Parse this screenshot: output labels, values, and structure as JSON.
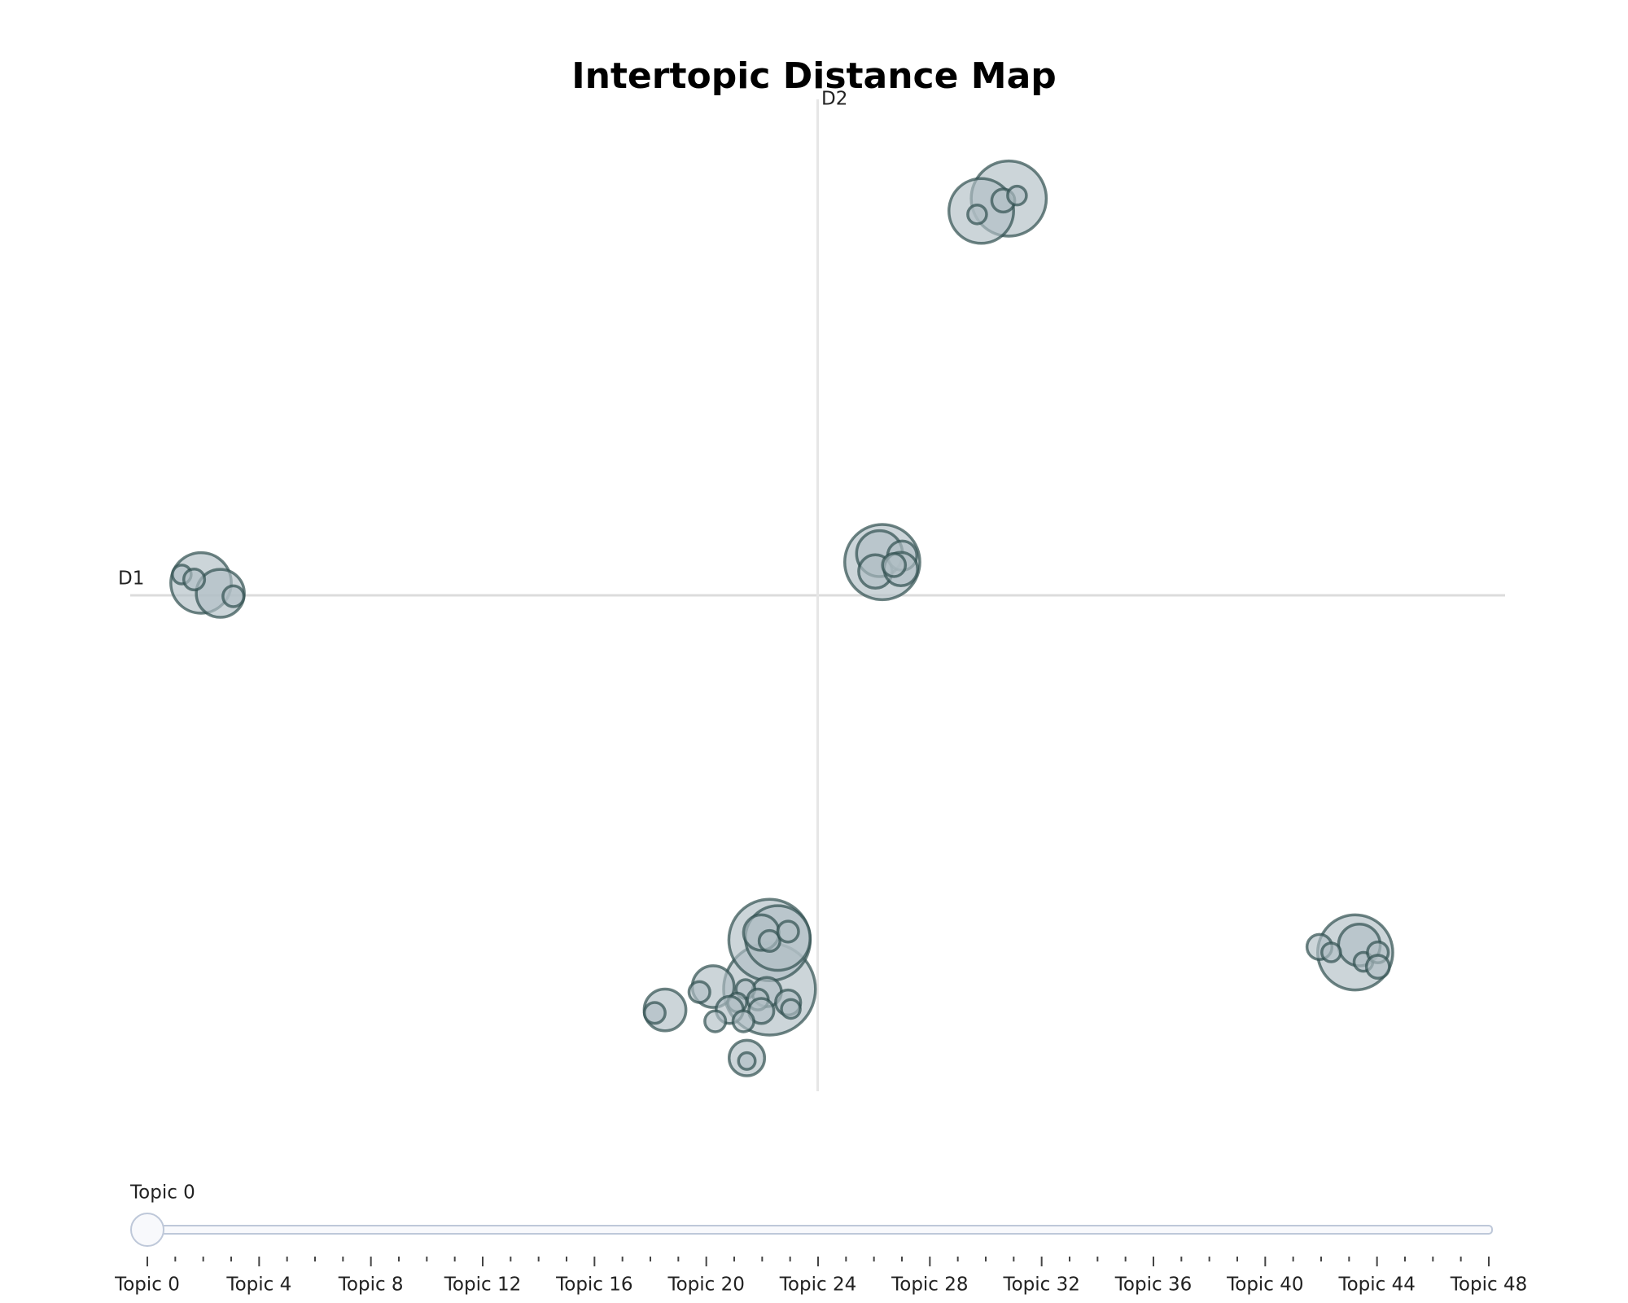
{
  "chart_data": {
    "type": "scatter",
    "title": "Intertopic Distance Map",
    "xlabel": "D1",
    "ylabel": "D2",
    "xlim": [
      -10,
      10
    ],
    "ylim": [
      -10,
      10
    ],
    "color": "#b0bec5",
    "edgecolor": "#2f4f4f",
    "x": [
      2.78,
      2.38,
      2.32,
      2.7,
      2.9,
      -8.97,
      -8.69,
      -9.25,
      -9.07,
      -8.5,
      0.94,
      0.9,
      0.84,
      1.23,
      1.21,
      1.11,
      -0.7,
      -0.7,
      -0.58,
      -0.82,
      -0.7,
      -0.43,
      -1.52,
      -1.72,
      -2.22,
      -2.37,
      -1.03,
      -1.03,
      -0.74,
      -1.05,
      -0.87,
      -1.17,
      -0.82,
      -1.28,
      -0.43,
      -0.39,
      -1.49,
      -1.08,
      7.82,
      7.88,
      7.3,
      7.47,
      7.94,
      8.15,
      8.15
    ],
    "y": [
      8.0,
      7.75,
      7.68,
      7.96,
      8.06,
      0.25,
      0.04,
      0.42,
      0.32,
      -0.02,
      0.67,
      0.84,
      0.48,
      0.8,
      0.53,
      0.61,
      -7.94,
      -6.95,
      -6.91,
      -6.8,
      -6.97,
      -6.78,
      -7.89,
      -8.0,
      -8.36,
      -8.42,
      -9.33,
      -9.39,
      -8.0,
      -7.94,
      -8.15,
      -8.21,
      -8.38,
      -8.36,
      -8.21,
      -8.34,
      -8.59,
      -8.59,
      -7.2,
      -7.05,
      -7.09,
      -7.2,
      -7.39,
      -7.2,
      -7.49
    ],
    "sizes": [
      36,
      31,
      9,
      11,
      9,
      29,
      23,
      9,
      10,
      10,
      36,
      22,
      16,
      14,
      16,
      11,
      44,
      39,
      31,
      17,
      10,
      10,
      20,
      10,
      20,
      10,
      17,
      8,
      14,
      9,
      10,
      9,
      12,
      13,
      12,
      9,
      10,
      10,
      36,
      20,
      12,
      9,
      9,
      10,
      11
    ]
  },
  "slider": {
    "current_label": "Topic 0",
    "tick_labels": [
      "Topic 0",
      "Topic 4",
      "Topic 8",
      "Topic 12",
      "Topic 16",
      "Topic 20",
      "Topic 24",
      "Topic 28",
      "Topic 32",
      "Topic 36",
      "Topic 40",
      "Topic 44",
      "Topic 48"
    ]
  }
}
